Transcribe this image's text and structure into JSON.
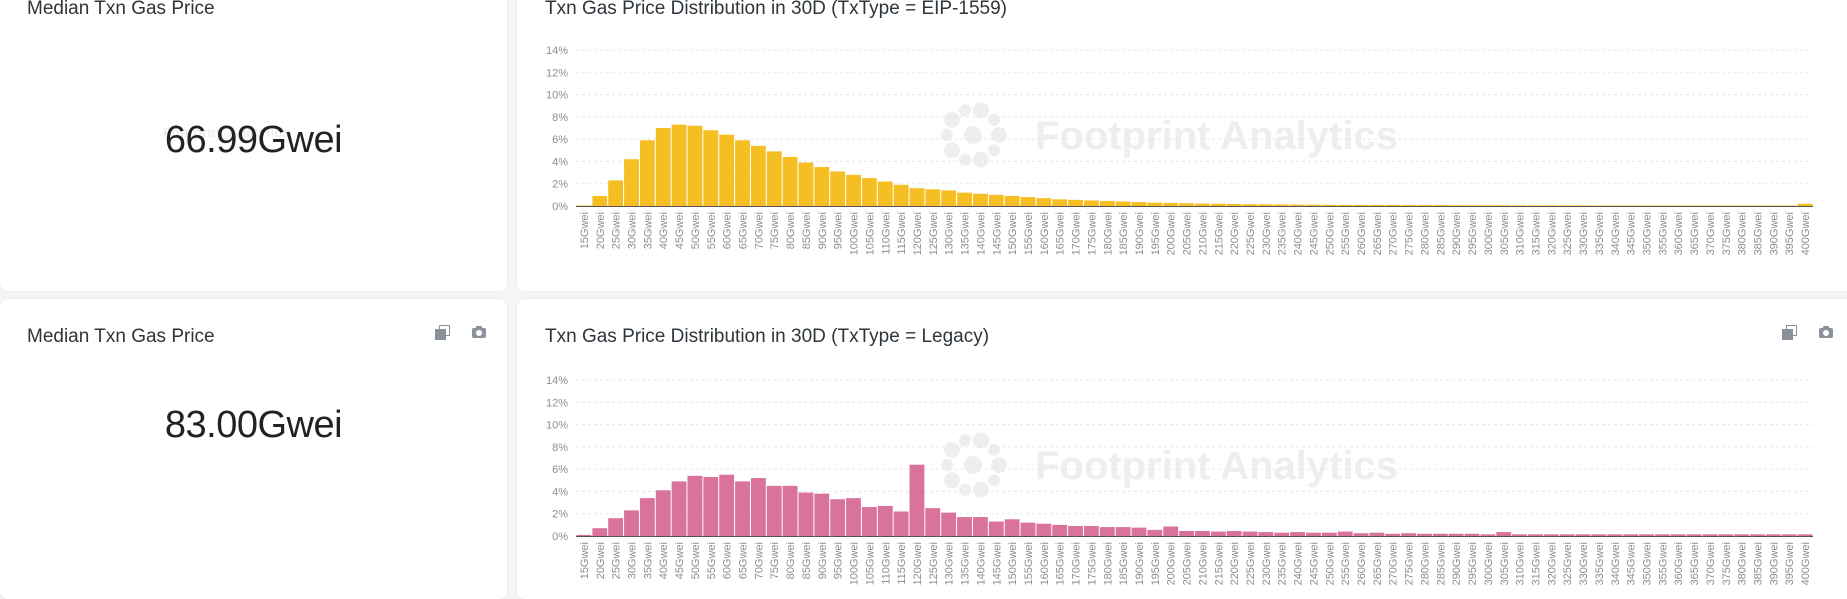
{
  "watermark": "Footprint Analytics",
  "panels": [
    {
      "median_title": "Median Txn Gas Price",
      "median_value": "66.99Gwei",
      "dist_title": "Txn Gas Price Distribution in 30D (TxType = EIP-1559)"
    },
    {
      "median_title": "Median Txn Gas Price",
      "median_value": "83.00Gwei",
      "dist_title": "Txn Gas Price Distribution in 30D (TxType = Legacy)"
    }
  ],
  "chart_data": [
    {
      "type": "bar",
      "title": "Txn Gas Price Distribution in 30D (TxType = EIP-1559)",
      "color": "#f5bf23",
      "ylim": [
        0,
        14
      ],
      "yticks": [
        "0%",
        "2%",
        "4%",
        "6%",
        "8%",
        "10%",
        "12%",
        "14%"
      ],
      "grid": true,
      "categories": [
        "15Gwei",
        "20Gwei",
        "25Gwei",
        "30Gwei",
        "35Gwei",
        "40Gwei",
        "45Gwei",
        "50Gwei",
        "55Gwei",
        "60Gwei",
        "65Gwei",
        "70Gwei",
        "75Gwei",
        "80Gwei",
        "85Gwei",
        "90Gwei",
        "95Gwei",
        "100Gwei",
        "105Gwei",
        "110Gwei",
        "115Gwei",
        "120Gwei",
        "125Gwei",
        "130Gwei",
        "135Gwei",
        "140Gwei",
        "145Gwei",
        "150Gwei",
        "155Gwei",
        "160Gwei",
        "165Gwei",
        "170Gwei",
        "175Gwei",
        "180Gwei",
        "185Gwei",
        "190Gwei",
        "195Gwei",
        "200Gwei",
        "205Gwei",
        "210Gwei",
        "215Gwei",
        "220Gwei",
        "225Gwei",
        "230Gwei",
        "235Gwei",
        "240Gwei",
        "245Gwei",
        "250Gwei",
        "255Gwei",
        "260Gwei",
        "265Gwei",
        "270Gwei",
        "275Gwei",
        "280Gwei",
        "285Gwei",
        "290Gwei",
        "295Gwei",
        "300Gwei",
        "305Gwei",
        "310Gwei",
        "315Gwei",
        "320Gwei",
        "325Gwei",
        "330Gwei",
        "335Gwei",
        "340Gwei",
        "345Gwei",
        "350Gwei",
        "355Gwei",
        "360Gwei",
        "365Gwei",
        "370Gwei",
        "375Gwei",
        "380Gwei",
        "385Gwei",
        "390Gwei",
        "395Gwei",
        "400Gwei"
      ],
      "values": [
        0.05,
        0.9,
        2.3,
        4.2,
        5.9,
        7.0,
        7.3,
        7.2,
        6.8,
        6.4,
        5.9,
        5.4,
        4.9,
        4.4,
        3.9,
        3.5,
        3.1,
        2.8,
        2.5,
        2.2,
        1.9,
        1.6,
        1.5,
        1.4,
        1.2,
        1.1,
        1.0,
        0.9,
        0.8,
        0.7,
        0.6,
        0.55,
        0.5,
        0.45,
        0.4,
        0.35,
        0.3,
        0.28,
        0.25,
        0.22,
        0.2,
        0.18,
        0.16,
        0.15,
        0.14,
        0.13,
        0.12,
        0.11,
        0.1,
        0.1,
        0.09,
        0.09,
        0.08,
        0.08,
        0.08,
        0.07,
        0.07,
        0.07,
        0.07,
        0.06,
        0.06,
        0.06,
        0.06,
        0.06,
        0.05,
        0.05,
        0.05,
        0.05,
        0.05,
        0.05,
        0.05,
        0.05,
        0.05,
        0.05,
        0.05,
        0.05,
        0.05,
        0.2
      ]
    },
    {
      "type": "bar",
      "title": "Txn Gas Price Distribution in 30D (TxType = Legacy)",
      "color": "#d9739c",
      "ylim": [
        0,
        14
      ],
      "yticks": [
        "0%",
        "2%",
        "4%",
        "6%",
        "8%",
        "10%",
        "12%",
        "14%"
      ],
      "grid": true,
      "categories": [
        "15Gwei",
        "20Gwei",
        "25Gwei",
        "30Gwei",
        "35Gwei",
        "40Gwei",
        "45Gwei",
        "50Gwei",
        "55Gwei",
        "60Gwei",
        "65Gwei",
        "70Gwei",
        "75Gwei",
        "80Gwei",
        "85Gwei",
        "90Gwei",
        "95Gwei",
        "100Gwei",
        "105Gwei",
        "110Gwei",
        "115Gwei",
        "120Gwei",
        "125Gwei",
        "130Gwei",
        "135Gwei",
        "140Gwei",
        "145Gwei",
        "150Gwei",
        "155Gwei",
        "160Gwei",
        "165Gwei",
        "170Gwei",
        "175Gwei",
        "180Gwei",
        "185Gwei",
        "190Gwei",
        "195Gwei",
        "200Gwei",
        "205Gwei",
        "210Gwei",
        "215Gwei",
        "220Gwei",
        "225Gwei",
        "230Gwei",
        "235Gwei",
        "240Gwei",
        "245Gwei",
        "250Gwei",
        "255Gwei",
        "260Gwei",
        "265Gwei",
        "270Gwei",
        "275Gwei",
        "280Gwei",
        "285Gwei",
        "290Gwei",
        "295Gwei",
        "300Gwei",
        "305Gwei",
        "310Gwei",
        "315Gwei",
        "320Gwei",
        "325Gwei",
        "330Gwei",
        "335Gwei",
        "340Gwei",
        "345Gwei",
        "350Gwei",
        "355Gwei",
        "360Gwei",
        "365Gwei",
        "370Gwei",
        "375Gwei",
        "380Gwei",
        "385Gwei",
        "390Gwei",
        "395Gwei",
        "400Gwei"
      ],
      "values": [
        0.1,
        0.7,
        1.6,
        2.3,
        3.4,
        4.1,
        4.9,
        5.4,
        5.3,
        5.5,
        4.9,
        5.2,
        4.5,
        4.5,
        3.9,
        3.8,
        3.3,
        3.4,
        2.6,
        2.7,
        2.2,
        6.4,
        2.5,
        2.1,
        1.7,
        1.7,
        1.3,
        1.5,
        1.2,
        1.1,
        1.0,
        0.9,
        0.9,
        0.8,
        0.8,
        0.75,
        0.55,
        0.85,
        0.45,
        0.45,
        0.4,
        0.45,
        0.4,
        0.35,
        0.3,
        0.35,
        0.3,
        0.3,
        0.4,
        0.25,
        0.3,
        0.2,
        0.25,
        0.2,
        0.2,
        0.2,
        0.2,
        0.15,
        0.35,
        0.15,
        0.15,
        0.15,
        0.15,
        0.15,
        0.15,
        0.15,
        0.15,
        0.15,
        0.15,
        0.15,
        0.15,
        0.15,
        0.15,
        0.15,
        0.15,
        0.15,
        0.15,
        0.15
      ]
    }
  ]
}
